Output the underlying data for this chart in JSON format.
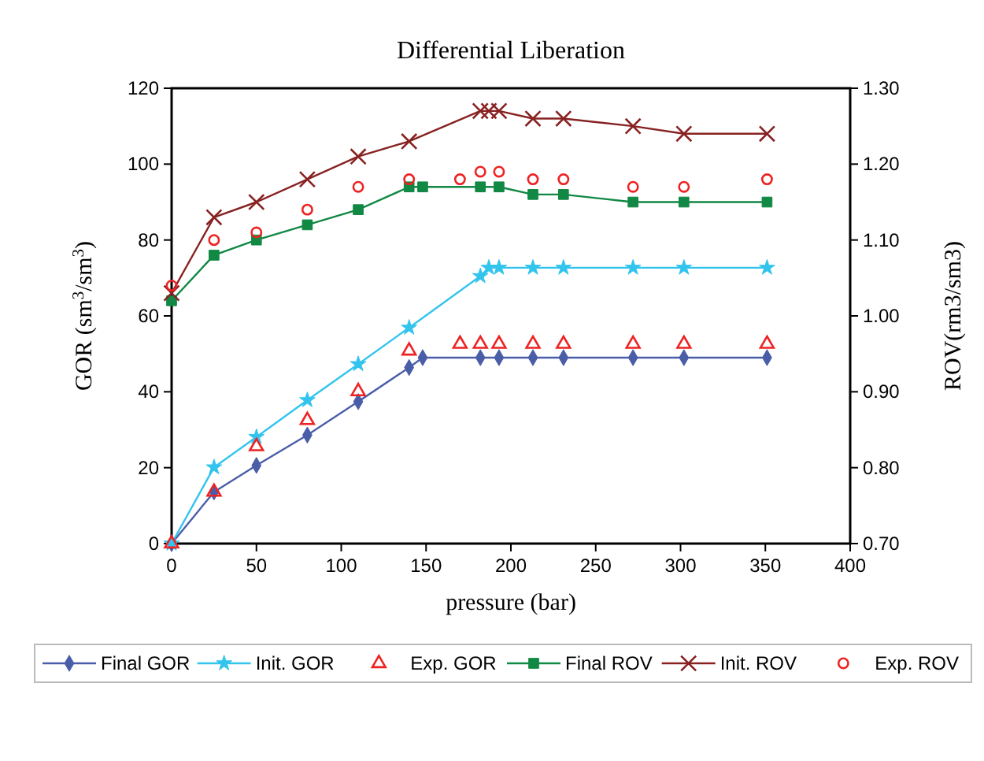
{
  "chart_data": {
    "type": "line",
    "title": "Differential Liberation",
    "xlabel": "pressure (bar)",
    "ylabel": "GOR (sm$^{3}$/sm$^{3}$)",
    "y2label": "ROV(rm3/sm3)",
    "xlim": [
      0,
      400
    ],
    "xticks": [
      0,
      50,
      100,
      150,
      200,
      250,
      300,
      350,
      400
    ],
    "ylim": [
      0,
      120
    ],
    "yticks": [
      0,
      20,
      40,
      60,
      80,
      100,
      120
    ],
    "y2lim": [
      0.7,
      1.3
    ],
    "y2ticks": [
      {
        "value": 0.7,
        "label": "0.70"
      },
      {
        "value": 0.8,
        "label": "0.80"
      },
      {
        "value": 0.9,
        "label": "0.90"
      },
      {
        "value": 1.0,
        "label": "1.00"
      },
      {
        "value": 1.1,
        "label": "1.10"
      },
      {
        "value": 1.2,
        "label": "1.20"
      },
      {
        "value": 1.3,
        "label": "1.30"
      }
    ],
    "grid": false,
    "legend": "bottom",
    "series": [
      {
        "name": "Final GOR",
        "marker": "diamond",
        "color": "#4a5ea8",
        "x": [
          0,
          25,
          50,
          80,
          110,
          140,
          148,
          182,
          193,
          213,
          231,
          272,
          302,
          351
        ],
        "values": [
          0,
          13.6,
          20.6,
          28.6,
          37.4,
          46.4,
          49,
          49,
          49,
          49,
          49,
          49,
          49,
          49
        ]
      },
      {
        "name": "Init. GOR",
        "marker": "star",
        "color": "#33c4ee",
        "x": [
          0,
          25,
          50,
          80,
          110,
          140,
          182,
          187,
          193,
          213,
          231,
          272,
          302,
          351
        ],
        "values": [
          0,
          20.1,
          28.1,
          37.8,
          47.3,
          56.9,
          70.5,
          72.7,
          72.7,
          72.7,
          72.7,
          72.7,
          72.7,
          72.7
        ]
      },
      {
        "name": "Exp. GOR",
        "type": "scatter",
        "marker": "triangle",
        "color": "#ee2222",
        "x": [
          0,
          25,
          50,
          80,
          110,
          140,
          170,
          182,
          193,
          213,
          231,
          272,
          302,
          351
        ],
        "values": [
          0,
          13.6,
          25.6,
          32.5,
          40.1,
          50.8,
          52.6,
          52.6,
          52.6,
          52.6,
          52.6,
          52.6,
          52.6,
          52.6
        ]
      },
      {
        "name": "Final ROV",
        "marker": "square",
        "color": "#118844",
        "axis": "y2",
        "x": [
          0,
          25,
          50,
          80,
          110,
          140,
          148,
          182,
          193,
          213,
          231,
          272,
          302,
          351
        ],
        "values": [
          1.02,
          1.08,
          1.1,
          1.12,
          1.14,
          1.17,
          1.17,
          1.17,
          1.17,
          1.16,
          1.16,
          1.15,
          1.15,
          1.15
        ]
      },
      {
        "name": "Init. ROV",
        "marker": "cross",
        "color": "#882222",
        "axis": "y2",
        "x": [
          0,
          25,
          50,
          80,
          110,
          140,
          182,
          187,
          193,
          213,
          231,
          272,
          302,
          351
        ],
        "values": [
          1.03,
          1.13,
          1.15,
          1.18,
          1.21,
          1.23,
          1.27,
          1.27,
          1.27,
          1.26,
          1.26,
          1.25,
          1.24,
          1.24
        ]
      },
      {
        "name": "Exp. ROV",
        "type": "scatter",
        "marker": "circle",
        "color": "#ee2222",
        "axis": "y2",
        "x": [
          0,
          25,
          50,
          80,
          110,
          140,
          170,
          182,
          193,
          213,
          231,
          272,
          302,
          351
        ],
        "values": [
          1.04,
          1.1,
          1.11,
          1.14,
          1.17,
          1.18,
          1.18,
          1.19,
          1.19,
          1.18,
          1.18,
          1.17,
          1.17,
          1.18
        ]
      }
    ]
  }
}
